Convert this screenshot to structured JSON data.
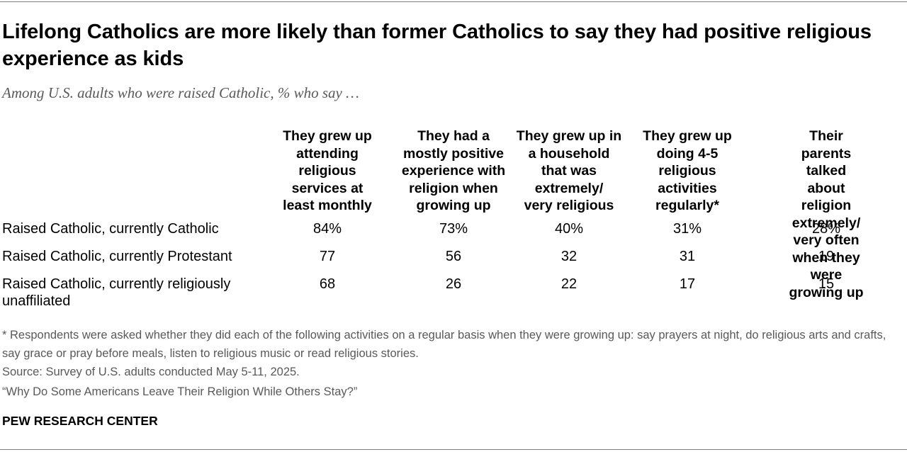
{
  "chart_data": {
    "type": "table",
    "title": "Lifelong Catholics are more likely than former Catholics to say they had positive religious experience as kids",
    "subtitle": "Among U.S. adults who were raised Catholic, % who say …",
    "columns": [
      "They grew up\nattending\nreligious\nservices at\nleast monthly",
      "They had a\nmostly positive\nexperience with\nreligion when\ngrowing up",
      "They grew up in\na household\nthat was\nextremely/\nvery religious",
      "They grew up\ndoing 4-5\nreligious\nactivities\nregularly*",
      "Their parents talked\nabout religion\nextremely/\nvery often when they\nwere growing up"
    ],
    "rows": [
      {
        "label": "Raised Catholic, currently Catholic",
        "values": [
          "84%",
          "73%",
          "40%",
          "31%",
          "28%"
        ]
      },
      {
        "label": "Raised Catholic, currently Protestant",
        "values": [
          "77",
          "56",
          "32",
          "31",
          "19"
        ]
      },
      {
        "label": "Raised Catholic, currently religiously unaffiliated",
        "values": [
          "68",
          "26",
          "22",
          "17",
          "15"
        ]
      }
    ]
  },
  "notes": {
    "footnote": "* Respondents were asked whether they did each of the following activities on a regular basis when they were growing up: say prayers at night, do religious arts and crafts, say grace or pray before meals, listen to religious music or read religious stories.",
    "source": "Source: Survey of U.S. adults conducted May 5-11, 2025.",
    "report": "“Why Do Some Americans Leave Their Religion While Others Stay?”"
  },
  "brand": "PEW RESEARCH CENTER",
  "colors": {
    "text": "#000000",
    "muted": "#595959",
    "rule": "#7f7f7f"
  }
}
